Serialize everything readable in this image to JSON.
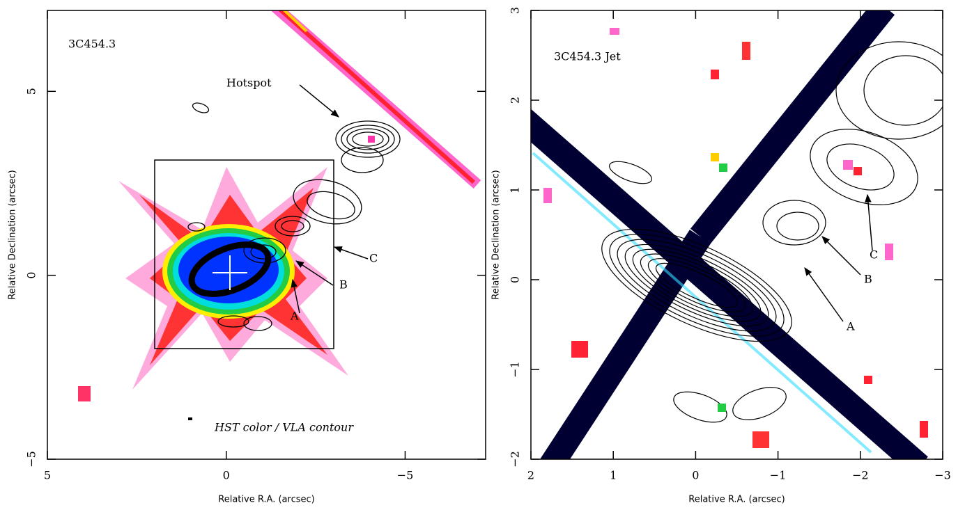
{
  "chart_data": [
    {
      "type": "image",
      "title": "3C454.3",
      "xlabel": "Relative R.A. (arcsec)",
      "ylabel": "Relative Declination (arcsec)",
      "xlim": [
        5,
        -7.25
      ],
      "ylim": [
        -5,
        7.2
      ],
      "xticks": [
        5,
        0,
        {
          "value": -5,
          "label": "−5"
        }
      ],
      "yticks": [
        {
          "value": -5,
          "label": "−5"
        },
        0,
        5
      ],
      "annotations": [
        "Hotspot",
        "C",
        "B",
        "A",
        "HST color / VLA contour"
      ]
    },
    {
      "type": "image",
      "title": "3C454.3 Jet",
      "xlabel": "Relative R.A. (arcsec)",
      "ylabel": "Relative Declination (arcsec)",
      "xlim": [
        2,
        -3
      ],
      "ylim": [
        -2,
        3
      ],
      "xticks": [
        2,
        1,
        0,
        {
          "value": -1,
          "label": "−1"
        },
        {
          "value": -2,
          "label": "−2"
        },
        {
          "value": -3,
          "label": "−3"
        }
      ],
      "yticks": [
        {
          "value": -2,
          "label": "−2"
        },
        {
          "value": -1,
          "label": "−1"
        },
        0,
        1,
        2,
        3
      ],
      "annotations": [
        "A",
        "B",
        "C"
      ]
    }
  ]
}
